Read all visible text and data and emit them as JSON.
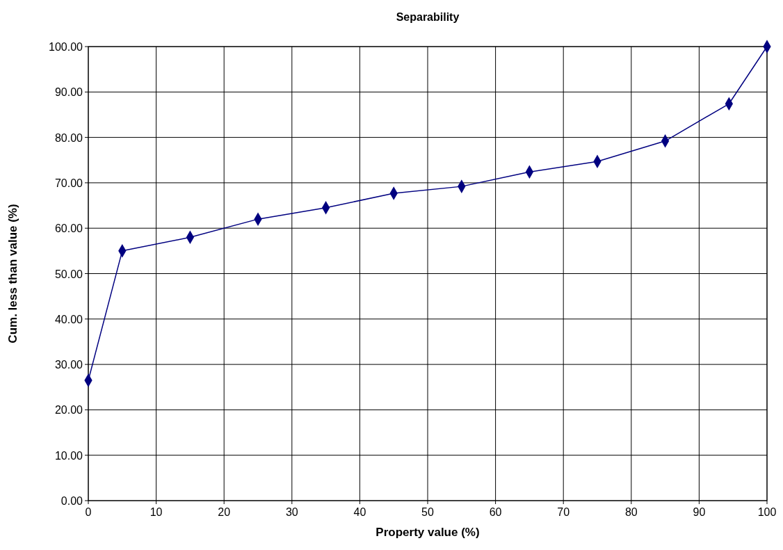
{
  "chart_data": {
    "type": "line",
    "title": "Separability",
    "xlabel": "Property value (%)",
    "ylabel": "Cum. less than value (%)",
    "x": [
      0,
      5,
      15,
      25,
      35,
      45,
      55,
      65,
      75,
      85,
      94.4,
      100
    ],
    "series": [
      {
        "color": "#000080",
        "values": [
          26.5,
          55.0,
          58.0,
          62.0,
          64.5,
          67.7,
          69.2,
          72.4,
          74.7,
          79.2,
          87.4,
          100.0
        ]
      }
    ],
    "xlim": [
      0,
      100
    ],
    "xticks": [
      0,
      10,
      20,
      30,
      40,
      50,
      60,
      70,
      80,
      90,
      100
    ],
    "ylim": [
      0,
      100
    ],
    "yticks": [
      {
        "value": 0,
        "label": "0.00"
      },
      {
        "value": 10,
        "label": "10.00"
      },
      {
        "value": 20,
        "label": "20.00"
      },
      {
        "value": 30,
        "label": "30.00"
      },
      {
        "value": 40,
        "label": "40.00"
      },
      {
        "value": 50,
        "label": "50.00"
      },
      {
        "value": 60,
        "label": "60.00"
      },
      {
        "value": 70,
        "label": "70.00"
      },
      {
        "value": 80,
        "label": "80.00"
      },
      {
        "value": 90,
        "label": "90.00"
      },
      {
        "value": 100,
        "label": "100.00"
      }
    ],
    "grid": true,
    "marker": "diamond",
    "line_style": "solid"
  }
}
